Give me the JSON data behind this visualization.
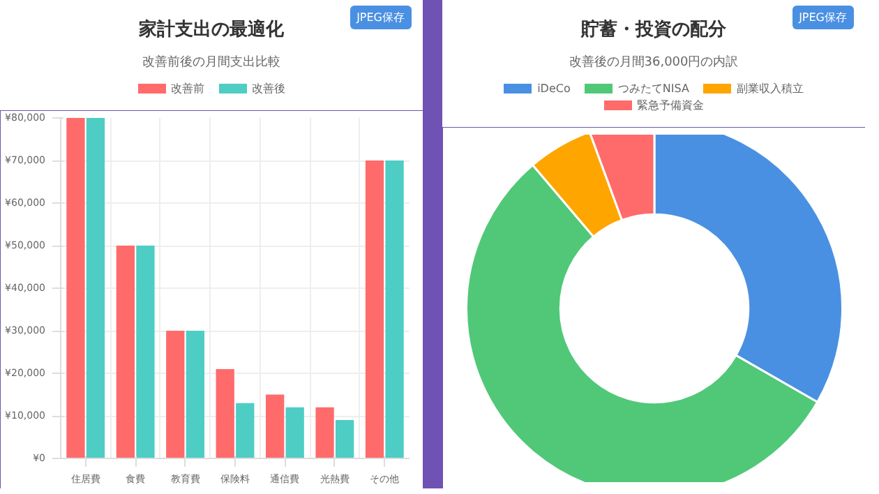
{
  "chart_data": [
    {
      "type": "bar",
      "title": "家計支出の最適化",
      "subtitle": "改善前後の月間支出比較",
      "annotations": [
        "JPEG保存"
      ],
      "categories": [
        "住居費",
        "食費",
        "教育費",
        "保険料",
        "通信費",
        "光熱費",
        "その他"
      ],
      "series": [
        {
          "name": "改善前",
          "color": "#ff6b6b",
          "values": [
            80000,
            50000,
            30000,
            21000,
            15000,
            12000,
            70000
          ]
        },
        {
          "name": "改善後",
          "color": "#4ecdc4",
          "values": [
            80000,
            50000,
            30000,
            13000,
            12000,
            9000,
            70000
          ]
        }
      ],
      "ylim": [
        0,
        80000
      ],
      "yticks": [
        {
          "value": 0,
          "label": "¥0"
        },
        {
          "value": 10000,
          "label": "¥10,000"
        },
        {
          "value": 20000,
          "label": "¥20,000"
        },
        {
          "value": 30000,
          "label": "¥30,000"
        },
        {
          "value": 40000,
          "label": "¥40,000"
        },
        {
          "value": 50000,
          "label": "¥50,000"
        },
        {
          "value": 60000,
          "label": "¥60,000"
        },
        {
          "value": 70000,
          "label": "¥70,000"
        },
        {
          "value": 80000,
          "label": "¥80,000"
        }
      ],
      "grid": true,
      "legend": "top"
    },
    {
      "type": "donut",
      "title": "貯蓄・投資の配分",
      "subtitle": "改善後の月間36,000円の内訳",
      "annotations": [
        "JPEG保存"
      ],
      "categories": [
        "iDeCo",
        "つみたてNISA",
        "副業収入積立",
        "緊急予備資金"
      ],
      "values": [
        33.3,
        55.5,
        5.6,
        5.6
      ],
      "colors": [
        "#4a90e2",
        "#50c878",
        "#ffa500",
        "#ff6b6b"
      ],
      "legend": "top"
    }
  ]
}
